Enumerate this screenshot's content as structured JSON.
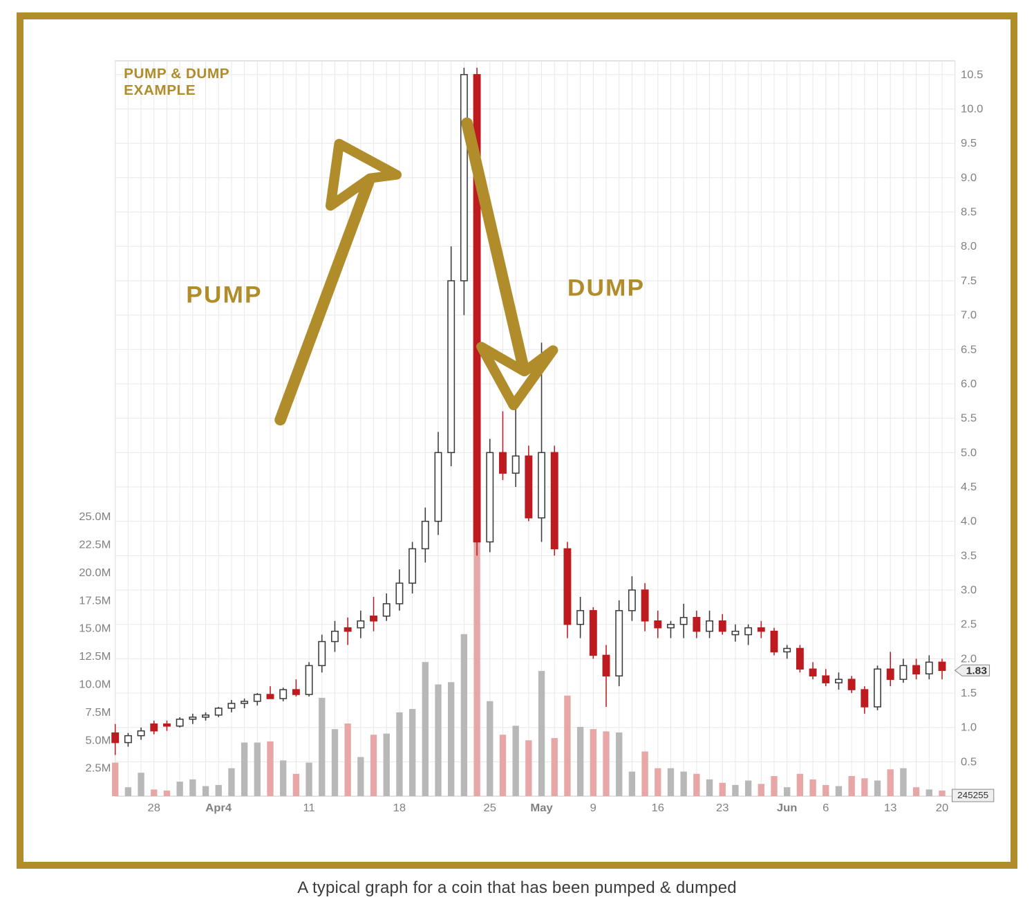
{
  "caption": "A typical graph for a coin that has been pumped & dumped",
  "chart": {
    "type": "candlestick+volume",
    "background_color": "#ffffff",
    "grid_color": "#e8e8e8",
    "axis_color": "#c8c8c8",
    "tick_label_color": "#808080",
    "tick_label_fontsize": 16,
    "title_text": "PUMP & DUMP\nEXAMPLE",
    "title_color": "#b08c2a",
    "title_fontsize": 20,
    "annotation_color": "#b08c2a",
    "annotation_fontsize": 34,
    "annotation_pump": "PUMP",
    "annotation_dump": "DUMP",
    "price_axis": {
      "min": 0,
      "max": 10.7,
      "ticks": [
        0.5,
        1.0,
        1.5,
        2.0,
        2.5,
        3.0,
        3.5,
        4.0,
        4.5,
        5.0,
        5.5,
        6.0,
        6.5,
        7.0,
        7.5,
        8.0,
        8.5,
        9.0,
        9.5,
        10.0,
        10.5
      ],
      "last_value_marker": 1.83,
      "last_value_label": "1.83"
    },
    "volume_axis": {
      "min": 0,
      "max": 25.0,
      "ticks": [
        2.5,
        5.0,
        7.5,
        10.0,
        12.5,
        15.0,
        17.5,
        20.0,
        22.5,
        25.0
      ],
      "units_label_suffix": "M",
      "bottom_right_label": "245255"
    },
    "x_axis": {
      "major_labels": [
        "28",
        "Apr4",
        "11",
        "18",
        "25",
        "May",
        "9",
        "16",
        "23",
        "Jun",
        "6",
        "13",
        "20"
      ],
      "label_fontsize": 16
    },
    "candle_colors": {
      "up_body_fill": "#ffffff",
      "up_body_stroke": "#3a3a3a",
      "down_body_fill": "#bd1b1f",
      "down_body_stroke": "#bd1b1f",
      "wick_up": "#3a3a3a",
      "wick_down": "#bd1b1f"
    },
    "volume_colors": {
      "up_fill": "#b8b8b8",
      "down_fill": "#e7a7a7"
    },
    "candle_width": 9,
    "x_domain": [
      0,
      65
    ],
    "candles": [
      {
        "i": 0,
        "o": 0.92,
        "h": 1.05,
        "l": 0.6,
        "c": 0.78,
        "v": 3.0,
        "d": "down"
      },
      {
        "i": 1,
        "o": 0.78,
        "h": 0.92,
        "l": 0.72,
        "c": 0.88,
        "v": 0.8,
        "d": "up"
      },
      {
        "i": 2,
        "o": 0.88,
        "h": 1.0,
        "l": 0.82,
        "c": 0.95,
        "v": 2.1,
        "d": "up"
      },
      {
        "i": 3,
        "o": 0.95,
        "h": 1.1,
        "l": 0.9,
        "c": 1.05,
        "v": 0.6,
        "d": "down"
      },
      {
        "i": 4,
        "o": 1.05,
        "h": 1.1,
        "l": 0.95,
        "c": 1.02,
        "v": 0.5,
        "d": "down"
      },
      {
        "i": 5,
        "o": 1.02,
        "h": 1.15,
        "l": 1.0,
        "c": 1.12,
        "v": 1.3,
        "d": "up"
      },
      {
        "i": 6,
        "o": 1.12,
        "h": 1.2,
        "l": 1.05,
        "c": 1.15,
        "v": 1.5,
        "d": "up"
      },
      {
        "i": 7,
        "o": 1.15,
        "h": 1.22,
        "l": 1.1,
        "c": 1.18,
        "v": 0.9,
        "d": "up"
      },
      {
        "i": 8,
        "o": 1.18,
        "h": 1.3,
        "l": 1.15,
        "c": 1.28,
        "v": 1.0,
        "d": "up"
      },
      {
        "i": 9,
        "o": 1.28,
        "h": 1.4,
        "l": 1.22,
        "c": 1.35,
        "v": 2.5,
        "d": "up"
      },
      {
        "i": 10,
        "o": 1.35,
        "h": 1.42,
        "l": 1.28,
        "c": 1.38,
        "v": 4.8,
        "d": "up"
      },
      {
        "i": 11,
        "o": 1.38,
        "h": 1.5,
        "l": 1.32,
        "c": 1.48,
        "v": 4.8,
        "d": "up"
      },
      {
        "i": 12,
        "o": 1.48,
        "h": 1.6,
        "l": 1.42,
        "c": 1.42,
        "v": 4.9,
        "d": "down"
      },
      {
        "i": 13,
        "o": 1.42,
        "h": 1.58,
        "l": 1.38,
        "c": 1.55,
        "v": 3.2,
        "d": "up"
      },
      {
        "i": 14,
        "o": 1.55,
        "h": 1.7,
        "l": 1.45,
        "c": 1.48,
        "v": 2.0,
        "d": "down"
      },
      {
        "i": 15,
        "o": 1.48,
        "h": 1.95,
        "l": 1.45,
        "c": 1.9,
        "v": 3.0,
        "d": "up"
      },
      {
        "i": 16,
        "o": 1.9,
        "h": 2.35,
        "l": 1.8,
        "c": 2.25,
        "v": 8.8,
        "d": "up"
      },
      {
        "i": 17,
        "o": 2.25,
        "h": 2.55,
        "l": 2.1,
        "c": 2.4,
        "v": 6.0,
        "d": "up"
      },
      {
        "i": 18,
        "o": 2.4,
        "h": 2.6,
        "l": 2.2,
        "c": 2.45,
        "v": 6.5,
        "d": "down"
      },
      {
        "i": 19,
        "o": 2.45,
        "h": 2.7,
        "l": 2.3,
        "c": 2.55,
        "v": 3.5,
        "d": "up"
      },
      {
        "i": 20,
        "o": 2.55,
        "h": 2.9,
        "l": 2.4,
        "c": 2.62,
        "v": 5.5,
        "d": "down"
      },
      {
        "i": 21,
        "o": 2.62,
        "h": 2.95,
        "l": 2.55,
        "c": 2.8,
        "v": 5.6,
        "d": "up"
      },
      {
        "i": 22,
        "o": 2.8,
        "h": 3.3,
        "l": 2.7,
        "c": 3.1,
        "v": 7.5,
        "d": "up"
      },
      {
        "i": 23,
        "o": 3.1,
        "h": 3.7,
        "l": 2.95,
        "c": 3.6,
        "v": 7.8,
        "d": "up"
      },
      {
        "i": 24,
        "o": 3.6,
        "h": 4.2,
        "l": 3.4,
        "c": 4.0,
        "v": 12.0,
        "d": "up"
      },
      {
        "i": 25,
        "o": 4.0,
        "h": 5.3,
        "l": 3.8,
        "c": 5.0,
        "v": 10.0,
        "d": "up"
      },
      {
        "i": 26,
        "o": 5.0,
        "h": 8.0,
        "l": 4.8,
        "c": 7.5,
        "v": 10.2,
        "d": "up"
      },
      {
        "i": 27,
        "o": 7.5,
        "h": 10.6,
        "l": 7.0,
        "c": 10.5,
        "v": 14.5,
        "d": "up"
      },
      {
        "i": 28,
        "o": 10.5,
        "h": 10.6,
        "l": 3.5,
        "c": 3.7,
        "v": 23.0,
        "d": "down"
      },
      {
        "i": 29,
        "o": 3.7,
        "h": 5.2,
        "l": 3.55,
        "c": 5.0,
        "v": 8.5,
        "d": "up"
      },
      {
        "i": 30,
        "o": 5.0,
        "h": 5.6,
        "l": 4.6,
        "c": 4.7,
        "v": 5.5,
        "d": "down"
      },
      {
        "i": 31,
        "o": 4.7,
        "h": 5.7,
        "l": 4.5,
        "c": 4.95,
        "v": 6.3,
        "d": "up"
      },
      {
        "i": 32,
        "o": 4.95,
        "h": 5.1,
        "l": 4.0,
        "c": 4.05,
        "v": 5.0,
        "d": "down"
      },
      {
        "i": 33,
        "o": 4.05,
        "h": 6.6,
        "l": 3.7,
        "c": 5.0,
        "v": 11.2,
        "d": "up"
      },
      {
        "i": 34,
        "o": 5.0,
        "h": 5.1,
        "l": 3.5,
        "c": 3.6,
        "v": 5.2,
        "d": "down"
      },
      {
        "i": 35,
        "o": 3.6,
        "h": 3.7,
        "l": 2.3,
        "c": 2.5,
        "v": 9.0,
        "d": "down"
      },
      {
        "i": 36,
        "o": 2.5,
        "h": 2.9,
        "l": 2.3,
        "c": 2.7,
        "v": 6.2,
        "d": "up"
      },
      {
        "i": 37,
        "o": 2.7,
        "h": 2.75,
        "l": 2.0,
        "c": 2.05,
        "v": 6.0,
        "d": "down"
      },
      {
        "i": 38,
        "o": 2.05,
        "h": 2.2,
        "l": 1.3,
        "c": 1.75,
        "v": 5.8,
        "d": "down"
      },
      {
        "i": 39,
        "o": 1.75,
        "h": 2.85,
        "l": 1.6,
        "c": 2.7,
        "v": 5.7,
        "d": "up"
      },
      {
        "i": 40,
        "o": 2.7,
        "h": 3.2,
        "l": 2.55,
        "c": 3.0,
        "v": 2.2,
        "d": "up"
      },
      {
        "i": 41,
        "o": 3.0,
        "h": 3.1,
        "l": 2.4,
        "c": 2.55,
        "v": 4.0,
        "d": "down"
      },
      {
        "i": 42,
        "o": 2.55,
        "h": 2.7,
        "l": 2.3,
        "c": 2.45,
        "v": 2.5,
        "d": "down"
      },
      {
        "i": 43,
        "o": 2.45,
        "h": 2.55,
        "l": 2.3,
        "c": 2.5,
        "v": 2.5,
        "d": "up"
      },
      {
        "i": 44,
        "o": 2.5,
        "h": 2.8,
        "l": 2.3,
        "c": 2.6,
        "v": 2.2,
        "d": "up"
      },
      {
        "i": 45,
        "o": 2.6,
        "h": 2.7,
        "l": 2.3,
        "c": 2.4,
        "v": 2.0,
        "d": "down"
      },
      {
        "i": 46,
        "o": 2.4,
        "h": 2.7,
        "l": 2.3,
        "c": 2.55,
        "v": 1.5,
        "d": "up"
      },
      {
        "i": 47,
        "o": 2.55,
        "h": 2.65,
        "l": 2.35,
        "c": 2.4,
        "v": 1.2,
        "d": "down"
      },
      {
        "i": 48,
        "o": 2.4,
        "h": 2.5,
        "l": 2.25,
        "c": 2.35,
        "v": 1.0,
        "d": "up"
      },
      {
        "i": 49,
        "o": 2.35,
        "h": 2.5,
        "l": 2.2,
        "c": 2.45,
        "v": 1.4,
        "d": "up"
      },
      {
        "i": 50,
        "o": 2.45,
        "h": 2.55,
        "l": 2.3,
        "c": 2.4,
        "v": 1.1,
        "d": "down"
      },
      {
        "i": 51,
        "o": 2.4,
        "h": 2.45,
        "l": 2.05,
        "c": 2.1,
        "v": 1.8,
        "d": "down"
      },
      {
        "i": 52,
        "o": 2.1,
        "h": 2.2,
        "l": 2.0,
        "c": 2.15,
        "v": 0.8,
        "d": "up"
      },
      {
        "i": 53,
        "o": 2.15,
        "h": 2.2,
        "l": 1.8,
        "c": 1.85,
        "v": 2.0,
        "d": "down"
      },
      {
        "i": 54,
        "o": 1.85,
        "h": 1.95,
        "l": 1.7,
        "c": 1.75,
        "v": 1.5,
        "d": "down"
      },
      {
        "i": 55,
        "o": 1.75,
        "h": 1.85,
        "l": 1.6,
        "c": 1.65,
        "v": 1.0,
        "d": "down"
      },
      {
        "i": 56,
        "o": 1.65,
        "h": 1.8,
        "l": 1.55,
        "c": 1.7,
        "v": 0.9,
        "d": "up"
      },
      {
        "i": 57,
        "o": 1.7,
        "h": 1.75,
        "l": 1.5,
        "c": 1.55,
        "v": 1.8,
        "d": "down"
      },
      {
        "i": 58,
        "o": 1.55,
        "h": 1.6,
        "l": 1.2,
        "c": 1.3,
        "v": 1.6,
        "d": "down"
      },
      {
        "i": 59,
        "o": 1.3,
        "h": 1.9,
        "l": 1.25,
        "c": 1.85,
        "v": 1.4,
        "d": "up"
      },
      {
        "i": 60,
        "o": 1.85,
        "h": 2.1,
        "l": 1.6,
        "c": 1.7,
        "v": 2.4,
        "d": "down"
      },
      {
        "i": 61,
        "o": 1.7,
        "h": 2.0,
        "l": 1.65,
        "c": 1.9,
        "v": 2.5,
        "d": "up"
      },
      {
        "i": 62,
        "o": 1.9,
        "h": 2.0,
        "l": 1.7,
        "c": 1.78,
        "v": 0.8,
        "d": "down"
      },
      {
        "i": 63,
        "o": 1.78,
        "h": 2.05,
        "l": 1.7,
        "c": 1.95,
        "v": 0.6,
        "d": "up"
      },
      {
        "i": 64,
        "o": 1.95,
        "h": 2.0,
        "l": 1.7,
        "c": 1.83,
        "v": 0.5,
        "d": "down"
      }
    ],
    "x_major_positions": {
      "28": 3,
      "Apr4": 8,
      "11": 15,
      "18": 22,
      "25": 29,
      "May": 33,
      "9": 37,
      "16": 42,
      "23": 47,
      "Jun": 52,
      "6": 55,
      "13": 60,
      "20": 64
    }
  }
}
